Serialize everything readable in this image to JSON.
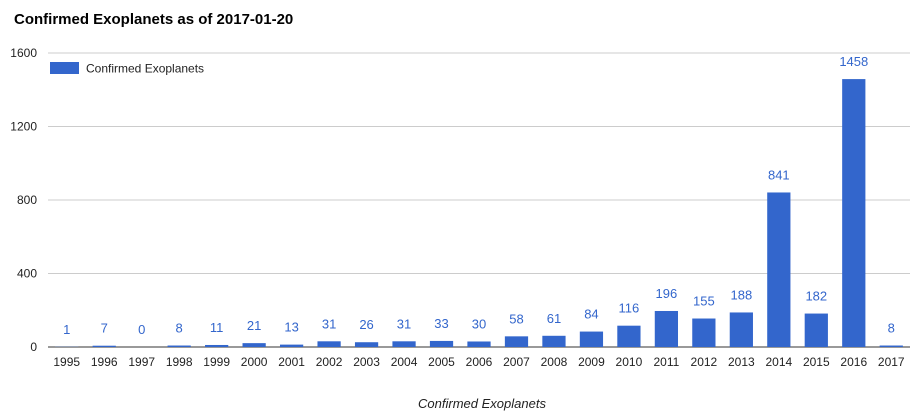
{
  "chart_data": {
    "type": "bar",
    "title": "Confirmed Exoplanets as of 2017-01-20",
    "xlabel": "Confirmed Exoplanets",
    "ylabel": "",
    "categories": [
      "1995",
      "1996",
      "1997",
      "1998",
      "1999",
      "2000",
      "2001",
      "2002",
      "2003",
      "2004",
      "2005",
      "2006",
      "2007",
      "2008",
      "2009",
      "2010",
      "2011",
      "2012",
      "2013",
      "2014",
      "2015",
      "2016",
      "2017"
    ],
    "series": [
      {
        "name": "Confirmed Exoplanets",
        "values": [
          1,
          7,
          0,
          8,
          11,
          21,
          13,
          31,
          26,
          31,
          33,
          30,
          58,
          61,
          84,
          116,
          196,
          155,
          188,
          841,
          182,
          1458,
          8
        ]
      }
    ],
    "ylim": [
      0,
      1600
    ],
    "yticks": [
      0,
      400,
      800,
      1200,
      1600
    ],
    "grid": true,
    "legend_position": "top-left",
    "colors": {
      "bar": "#3366cc",
      "label": "#3366cc",
      "grid": "#cccccc"
    }
  }
}
